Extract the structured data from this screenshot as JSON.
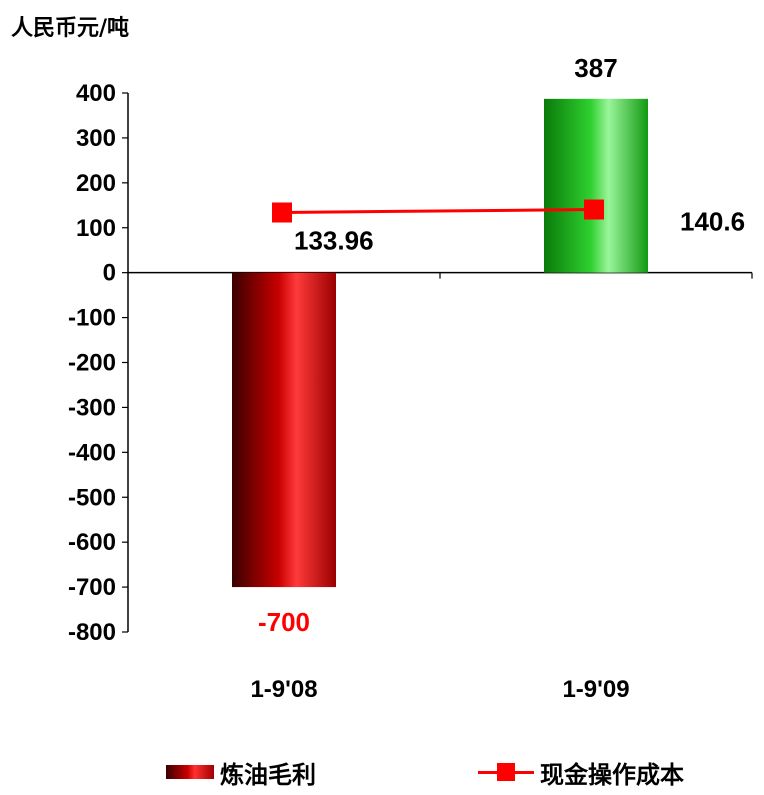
{
  "unit_label": "人民币元/吨",
  "colors": {
    "bar_negative": "#c80000",
    "bar_positive": "#1fbf1f",
    "line": "#ff0000",
    "negative_label": "#ff0000",
    "text": "#000000"
  },
  "legend": {
    "bar_label": "炼油毛利",
    "line_label": "现金操作成本"
  },
  "chart_data": {
    "type": "bar",
    "categories": [
      "1-9'08",
      "1-9'09"
    ],
    "series": [
      {
        "name": "炼油毛利",
        "type": "bar",
        "values": [
          -700,
          387
        ],
        "labels": [
          "-700",
          "387"
        ]
      },
      {
        "name": "现金操作成本",
        "type": "line",
        "values": [
          133.96,
          140.6
        ],
        "labels": [
          "133.96",
          "140.6"
        ]
      }
    ],
    "ylabel": "人民币元/吨",
    "ylim": [
      -800,
      400
    ],
    "yticks": [
      400,
      300,
      200,
      100,
      0,
      -100,
      -200,
      -300,
      -400,
      -500,
      -600,
      -700,
      -800
    ],
    "grid": false,
    "legend_position": "bottom"
  }
}
